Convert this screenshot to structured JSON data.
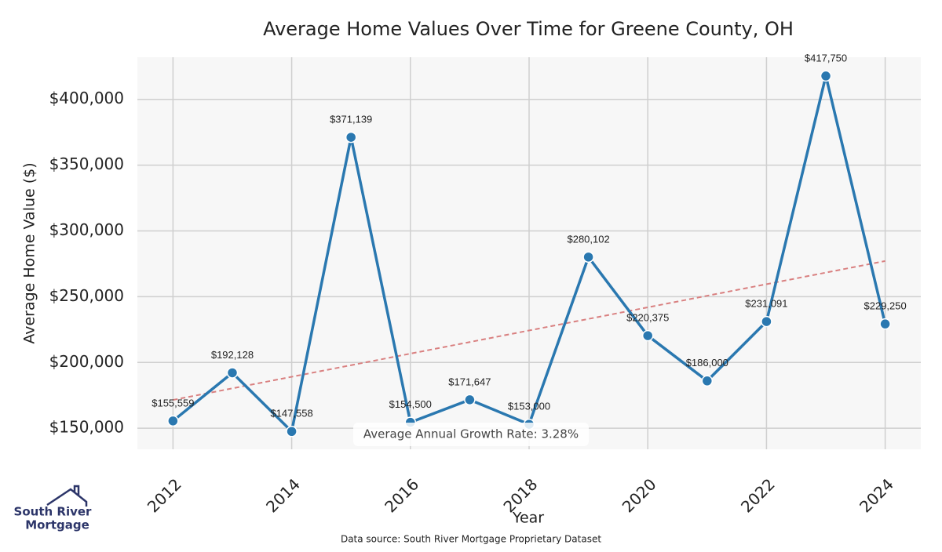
{
  "chart_data": {
    "type": "line",
    "title": "Average Home Values Over Time for Greene County, OH",
    "x_label": "Year",
    "y_label": "Average Home Value ($)",
    "x": [
      2012,
      2013,
      2014,
      2015,
      2016,
      2017,
      2018,
      2019,
      2020,
      2021,
      2022,
      2023,
      2024
    ],
    "series": [
      {
        "color": "#2a78b0",
        "values": [
          155559,
          192128,
          147558,
          371139,
          154500,
          171647,
          153000,
          280102,
          220375,
          186000,
          231091,
          417750,
          229250
        ],
        "value_labels": [
          "$155,559",
          "$192,128",
          "$147,558",
          "$371,139",
          "$154,500",
          "$171,647",
          "$153,000",
          "$280,102",
          "$220,375",
          "$186,000",
          "$231,091",
          "$417,750",
          "$229,250"
        ]
      }
    ],
    "trend": {
      "color": "#d98080",
      "x": [
        2012,
        2024
      ],
      "values": [
        171500,
        277100
      ]
    },
    "annotation": "Average Annual Growth Rate: 3.28%",
    "xlim": [
      2011.4,
      2024.6
    ],
    "xticks": [
      2012,
      2014,
      2016,
      2018,
      2020,
      2022,
      2024
    ],
    "ylim": [
      134000,
      432000
    ],
    "yticks": [
      {
        "value": 150000,
        "label": "$150,000"
      },
      {
        "value": 200000,
        "label": "$200,000"
      },
      {
        "value": 250000,
        "label": "$250,000"
      },
      {
        "value": 300000,
        "label": "$300,000"
      },
      {
        "value": 350000,
        "label": "$350,000"
      },
      {
        "value": 400000,
        "label": "$400,000"
      }
    ],
    "grid": true,
    "source": "Data source: South River Mortgage Proprietary Dataset",
    "logo": [
      "South River",
      "Mortgage"
    ]
  }
}
